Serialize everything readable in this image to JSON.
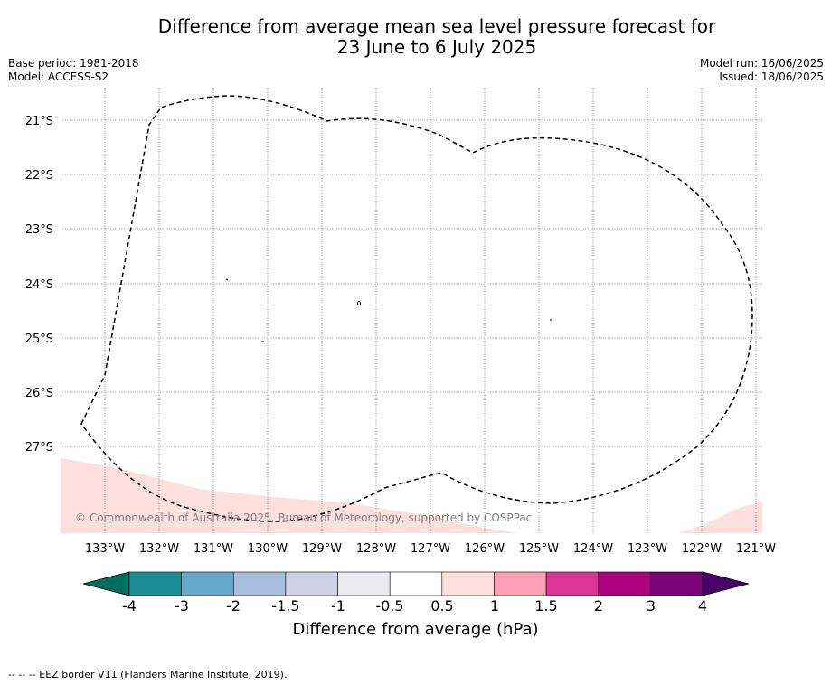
{
  "title": {
    "line1": "Difference from average mean sea level pressure forecast for",
    "line2": "23 June to 6 July 2025"
  },
  "meta": {
    "base_period": "Base period: 1981-2018",
    "model": "Model: ACCESS-S2",
    "model_run": "Model run: 16/06/2025",
    "issued": "Issued: 18/06/2025"
  },
  "map": {
    "lat_labels": [
      "21°S",
      "22°S",
      "23°S",
      "24°S",
      "25°S",
      "26°S",
      "27°S"
    ],
    "lon_labels": [
      "133°W",
      "132°W",
      "131°W",
      "130°W",
      "129°W",
      "128°W",
      "127°W",
      "126°W",
      "125°W",
      "124°W",
      "123°W",
      "122°W",
      "121°W"
    ],
    "copyright": "© Commonwealth of Australia 2025, Bureau of Meteorology, supported by COSPPac",
    "anomaly_fill_color": "#fde0dd"
  },
  "colorbar": {
    "title": "Difference from average (hPa)",
    "tick_labels": [
      "-4",
      "-3",
      "-2",
      "-1.5",
      "-1",
      "-0.5",
      "0.5",
      "1",
      "1.5",
      "2",
      "3",
      "4"
    ],
    "under_color": "#006d5e",
    "over_color": "#49006a",
    "colors": [
      "#1a9096",
      "#67a9cf",
      "#a6bddb",
      "#d0d1e6",
      "#ececf0",
      "#ffffff",
      "#fde0dd",
      "#fa9fb5",
      "#dd3497",
      "#ae017e",
      "#7a0177"
    ]
  },
  "footer": "--  --  -- EEZ border V11 (Flanders Marine Institute, 2019)."
}
